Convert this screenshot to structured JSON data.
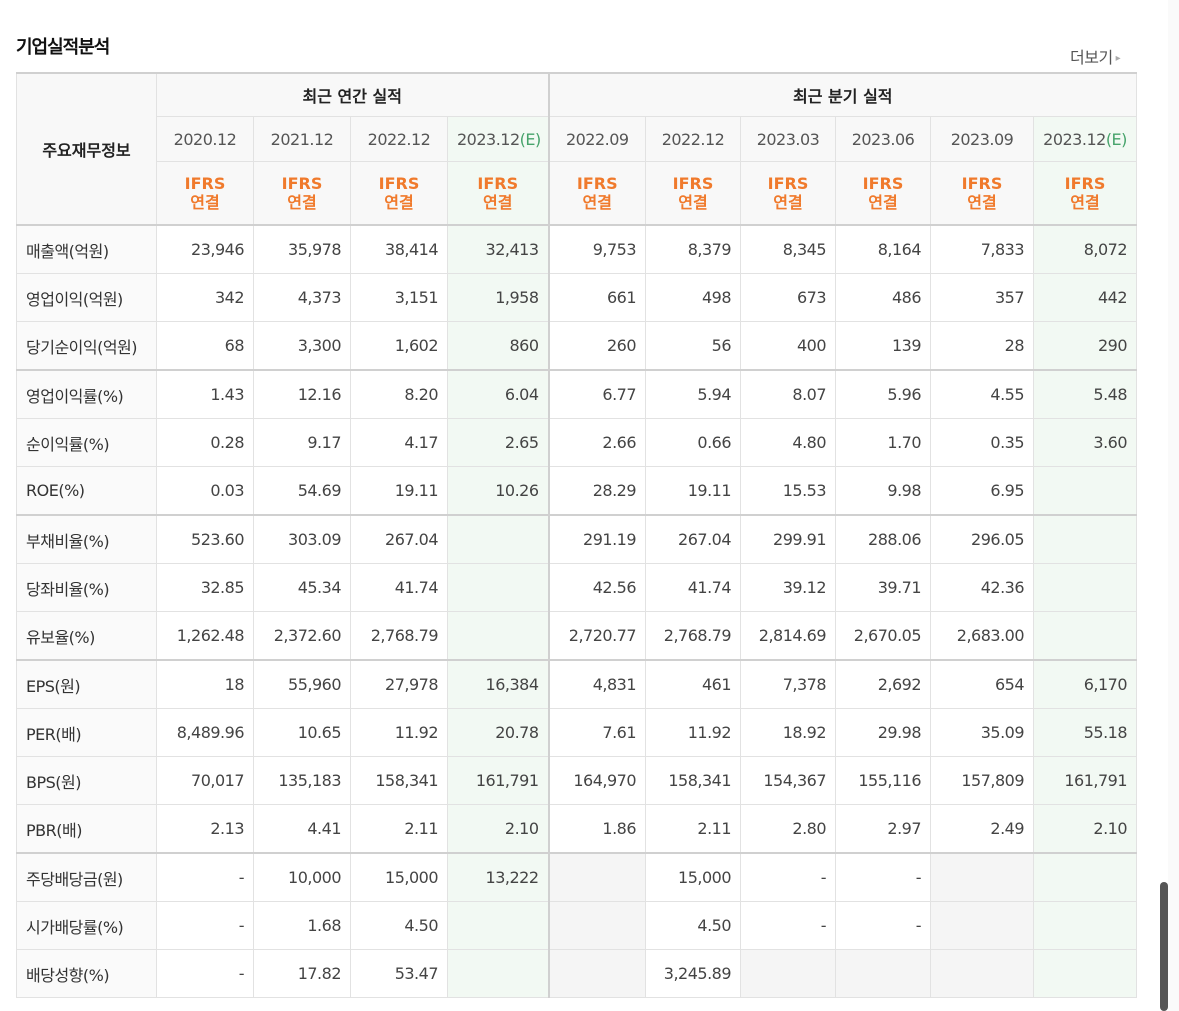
{
  "section_title": "기업실적분석",
  "more_link": {
    "label": "더보기",
    "arrow": "▸"
  },
  "header": {
    "row_title": "주요재무정보",
    "group_annual": "최근 연간 실적",
    "group_quarter": "최근 분기 실적",
    "estimate_mark": "(E)",
    "ifrs_line1": "IFRS",
    "ifrs_line2": "연결"
  },
  "periods": [
    {
      "label": "2020.12",
      "estimate": false
    },
    {
      "label": "2021.12",
      "estimate": false
    },
    {
      "label": "2022.12",
      "estimate": false
    },
    {
      "label": "2023.12",
      "estimate": true
    },
    {
      "label": "2022.09",
      "estimate": false
    },
    {
      "label": "2022.12",
      "estimate": false
    },
    {
      "label": "2023.03",
      "estimate": false
    },
    {
      "label": "2023.06",
      "estimate": false
    },
    {
      "label": "2023.09",
      "estimate": false
    },
    {
      "label": "2023.12",
      "estimate": true
    }
  ],
  "rows": [
    {
      "label": "매출액(억원)",
      "group_start": true,
      "values": [
        "23,946",
        "35,978",
        "38,414",
        "32,413",
        "9,753",
        "8,379",
        "8,345",
        "8,164",
        "7,833",
        "8,072"
      ]
    },
    {
      "label": "영업이익(억원)",
      "values": [
        "342",
        "4,373",
        "3,151",
        "1,958",
        "661",
        "498",
        "673",
        "486",
        "357",
        "442"
      ]
    },
    {
      "label": "당기순이익(억원)",
      "values": [
        "68",
        "3,300",
        "1,602",
        "860",
        "260",
        "56",
        "400",
        "139",
        "28",
        "290"
      ]
    },
    {
      "label": "영업이익률(%)",
      "group_start": true,
      "values": [
        "1.43",
        "12.16",
        "8.20",
        "6.04",
        "6.77",
        "5.94",
        "8.07",
        "5.96",
        "4.55",
        "5.48"
      ]
    },
    {
      "label": "순이익률(%)",
      "values": [
        "0.28",
        "9.17",
        "4.17",
        "2.65",
        "2.66",
        "0.66",
        "4.80",
        "1.70",
        "0.35",
        "3.60"
      ]
    },
    {
      "label": "ROE(%)",
      "values": [
        "0.03",
        "54.69",
        "19.11",
        "10.26",
        "28.29",
        "19.11",
        "15.53",
        "9.98",
        "6.95",
        ""
      ]
    },
    {
      "label": "부채비율(%)",
      "group_start": true,
      "values": [
        "523.60",
        "303.09",
        "267.04",
        "",
        "291.19",
        "267.04",
        "299.91",
        "288.06",
        "296.05",
        ""
      ]
    },
    {
      "label": "당좌비율(%)",
      "values": [
        "32.85",
        "45.34",
        "41.74",
        "",
        "42.56",
        "41.74",
        "39.12",
        "39.71",
        "42.36",
        ""
      ]
    },
    {
      "label": "유보율(%)",
      "values": [
        "1,262.48",
        "2,372.60",
        "2,768.79",
        "",
        "2,720.77",
        "2,768.79",
        "2,814.69",
        "2,670.05",
        "2,683.00",
        ""
      ]
    },
    {
      "label": "EPS(원)",
      "group_start": true,
      "values": [
        "18",
        "55,960",
        "27,978",
        "16,384",
        "4,831",
        "461",
        "7,378",
        "2,692",
        "654",
        "6,170"
      ]
    },
    {
      "label": "PER(배)",
      "values": [
        "8,489.96",
        "10.65",
        "11.92",
        "20.78",
        "7.61",
        "11.92",
        "18.92",
        "29.98",
        "35.09",
        "55.18"
      ]
    },
    {
      "label": "BPS(원)",
      "values": [
        "70,017",
        "135,183",
        "158,341",
        "161,791",
        "164,970",
        "158,341",
        "154,367",
        "155,116",
        "157,809",
        "161,791"
      ]
    },
    {
      "label": "PBR(배)",
      "values": [
        "2.13",
        "4.41",
        "2.11",
        "2.10",
        "1.86",
        "2.11",
        "2.80",
        "2.97",
        "2.49",
        "2.10"
      ]
    },
    {
      "label": "주당배당금(원)",
      "group_start": true,
      "values": [
        "-",
        "10,000",
        "15,000",
        "13,222",
        "",
        "15,000",
        "-",
        "-",
        "",
        ""
      ],
      "grey_empty": [
        4,
        8
      ]
    },
    {
      "label": "시가배당률(%)",
      "values": [
        "-",
        "1.68",
        "4.50",
        "",
        "",
        "4.50",
        "-",
        "-",
        "",
        ""
      ],
      "grey_empty": [
        4,
        8
      ]
    },
    {
      "label": "배당성향(%)",
      "values": [
        "-",
        "17.82",
        "53.47",
        "",
        "",
        "3,245.89",
        "",
        "",
        "",
        ""
      ],
      "grey_empty": [
        4,
        6,
        7,
        8
      ]
    }
  ],
  "colors": {
    "ifrs": "#f07a2c",
    "estimate_text": "#47a36b",
    "estimate_bg": "#f2f9f3"
  }
}
